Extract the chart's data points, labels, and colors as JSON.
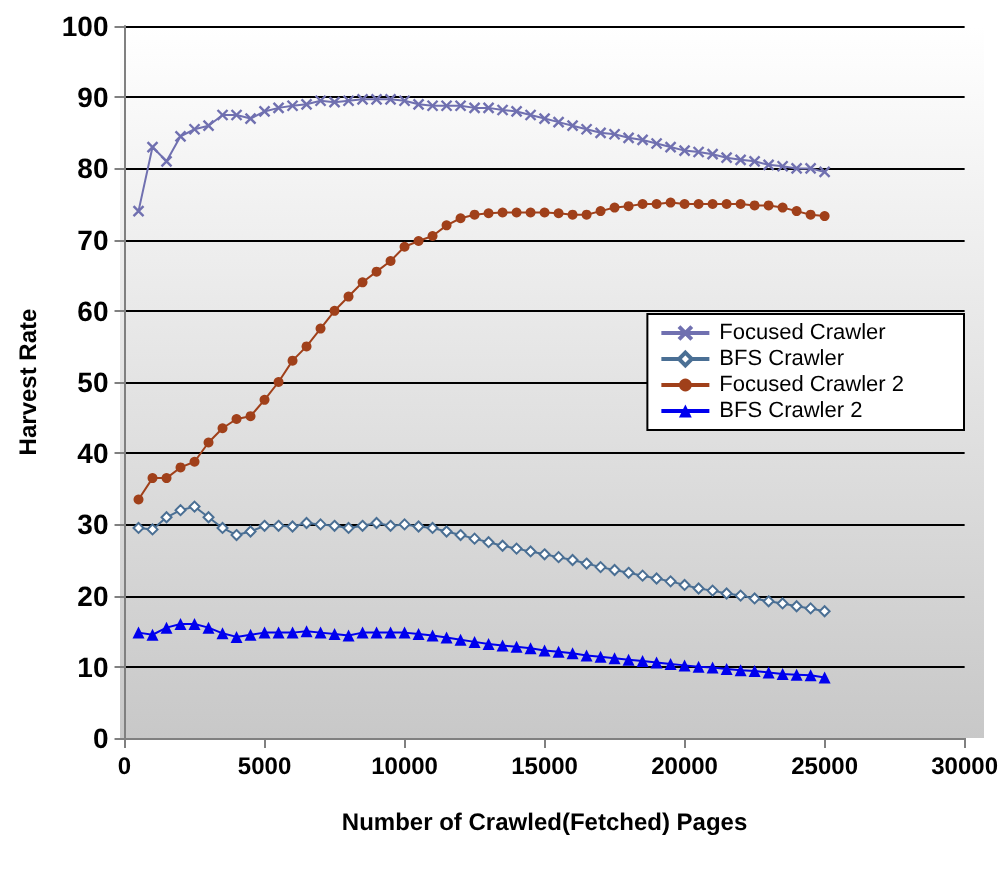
{
  "chart_data": {
    "type": "line",
    "xlabel": "Number of Crawled(Fetched) Pages",
    "ylabel": "Harvest Rate",
    "x": [
      500,
      1000,
      1500,
      2000,
      2500,
      3000,
      3500,
      4000,
      4500,
      5000,
      5500,
      6000,
      6500,
      7000,
      7500,
      8000,
      8500,
      9000,
      9500,
      10000,
      10500,
      11000,
      11500,
      12000,
      12500,
      13000,
      13500,
      14000,
      14500,
      15000,
      15500,
      16000,
      16500,
      17000,
      17500,
      18000,
      18500,
      19000,
      19500,
      20000,
      20500,
      21000,
      21500,
      22000,
      22500,
      23000,
      23500,
      24000,
      24500,
      25000
    ],
    "series": [
      {
        "name": "Focused Crawler",
        "color": "#7070b0",
        "marker": "cross",
        "values": [
          74,
          83,
          81,
          84.5,
          85.5,
          86,
          87.5,
          87.5,
          87,
          88,
          88.5,
          88.8,
          89,
          89.5,
          89.3,
          89.5,
          89.7,
          89.7,
          89.7,
          89.5,
          89,
          88.8,
          88.8,
          88.8,
          88.5,
          88.5,
          88.2,
          88,
          87.5,
          87,
          86.5,
          86,
          85.5,
          85,
          84.8,
          84.3,
          84,
          83.5,
          83,
          82.5,
          82.3,
          82,
          81.5,
          81.2,
          81,
          80.5,
          80.3,
          80,
          80,
          79.5
        ]
      },
      {
        "name": "BFS Crawler",
        "color": "#4a6f94",
        "marker": "diamond",
        "values": [
          29.5,
          29.3,
          31,
          32,
          32.5,
          31,
          29.5,
          28.5,
          29,
          29.8,
          29.8,
          29.7,
          30.2,
          30,
          29.8,
          29.5,
          29.8,
          30.2,
          29.8,
          30,
          29.7,
          29.5,
          29,
          28.5,
          28,
          27.5,
          27,
          26.6,
          26.2,
          25.8,
          25.4,
          25,
          24.5,
          24,
          23.6,
          23.2,
          22.8,
          22.4,
          22,
          21.5,
          21,
          20.7,
          20.3,
          20,
          19.6,
          19.2,
          18.9,
          18.5,
          18.2,
          17.8
        ]
      },
      {
        "name": "Focused Crawler 2",
        "color": "#a0401a",
        "marker": "circle",
        "values": [
          33.5,
          36.5,
          36.5,
          38,
          38.8,
          41.5,
          43.5,
          44.8,
          45.2,
          47.5,
          50,
          53,
          55,
          57.5,
          60,
          62,
          64,
          65.5,
          67,
          69,
          69.8,
          70.5,
          72,
          73,
          73.5,
          73.7,
          73.8,
          73.8,
          73.8,
          73.8,
          73.7,
          73.5,
          73.5,
          74,
          74.5,
          74.7,
          75,
          75,
          75.2,
          75,
          75,
          75,
          75,
          75,
          74.8,
          74.8,
          74.5,
          74,
          73.5,
          73.3
        ]
      },
      {
        "name": "BFS Crawler 2",
        "color": "#0000ee",
        "marker": "triangle",
        "values": [
          14.8,
          14.5,
          15.5,
          16,
          16,
          15.5,
          14.7,
          14.2,
          14.5,
          14.8,
          14.8,
          14.8,
          15,
          14.8,
          14.6,
          14.4,
          14.8,
          14.8,
          14.8,
          14.8,
          14.6,
          14.4,
          14.1,
          13.8,
          13.5,
          13.2,
          13,
          12.8,
          12.6,
          12.3,
          12.1,
          11.9,
          11.6,
          11.4,
          11.2,
          11,
          10.8,
          10.6,
          10.4,
          10.2,
          10,
          9.9,
          9.7,
          9.5,
          9.4,
          9.2,
          9,
          8.9,
          8.8,
          8.5
        ]
      }
    ],
    "xlim": [
      0,
      30000
    ],
    "xticks": [
      0,
      5000,
      10000,
      15000,
      20000,
      25000,
      30000
    ],
    "ylim": [
      0,
      100
    ],
    "yticks": [
      0,
      10,
      20,
      30,
      40,
      50,
      60,
      70,
      80,
      90,
      100
    ],
    "grid": "y",
    "legend": "right"
  }
}
